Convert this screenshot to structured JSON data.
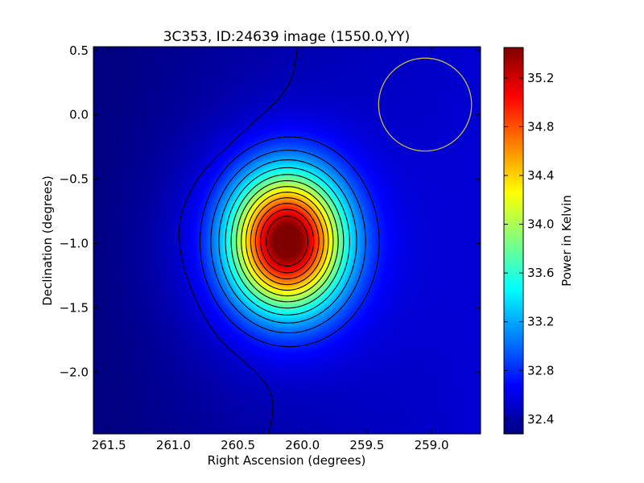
{
  "chart_data": {
    "type": "heatmap",
    "title": "3C353, ID:24639 image (1550.0,YY)",
    "xlabel": "Right Ascension (degrees)",
    "ylabel": "Declination (degrees)",
    "colorbar_label": "Power in Kelvin",
    "colormap": "jet",
    "x_inverted": true,
    "xlim": [
      261.62,
      258.62
    ],
    "ylim": [
      -2.48,
      0.53
    ],
    "x_ticks": [
      {
        "value": 261.5,
        "label": "261.5"
      },
      {
        "value": 261.0,
        "label": "261.0"
      },
      {
        "value": 260.5,
        "label": "260.5"
      },
      {
        "value": 260.0,
        "label": "260.0"
      },
      {
        "value": 259.5,
        "label": "259.5"
      },
      {
        "value": 259.0,
        "label": "259.0"
      }
    ],
    "y_ticks": [
      {
        "value": 0.5,
        "label": "0.5"
      },
      {
        "value": 0.0,
        "label": "0.0"
      },
      {
        "value": -0.5,
        "label": "−0.5"
      },
      {
        "value": -1.0,
        "label": "−1.0"
      },
      {
        "value": -1.5,
        "label": "−1.5"
      },
      {
        "value": -2.0,
        "label": "−2.0"
      }
    ],
    "colorbar_range": [
      32.28,
      35.45
    ],
    "colorbar_ticks": [
      {
        "value": 32.4,
        "label": "32.4"
      },
      {
        "value": 32.8,
        "label": "32.8"
      },
      {
        "value": 33.2,
        "label": "33.2"
      },
      {
        "value": 33.6,
        "label": "33.6"
      },
      {
        "value": 34.0,
        "label": "34.0"
      },
      {
        "value": 34.4,
        "label": "34.4"
      },
      {
        "value": 34.8,
        "label": "34.8"
      },
      {
        "value": 35.2,
        "label": "35.2"
      }
    ],
    "source": {
      "name": "3C353",
      "ra": 260.12,
      "dec": -0.98,
      "peak": 35.45
    },
    "background_level": 32.55,
    "contour_levels": 12,
    "beam_circle": {
      "ra": 259.05,
      "dec": 0.08,
      "radius_deg": 0.36,
      "color": "#c8b84a"
    },
    "contour_color": "#000000"
  }
}
